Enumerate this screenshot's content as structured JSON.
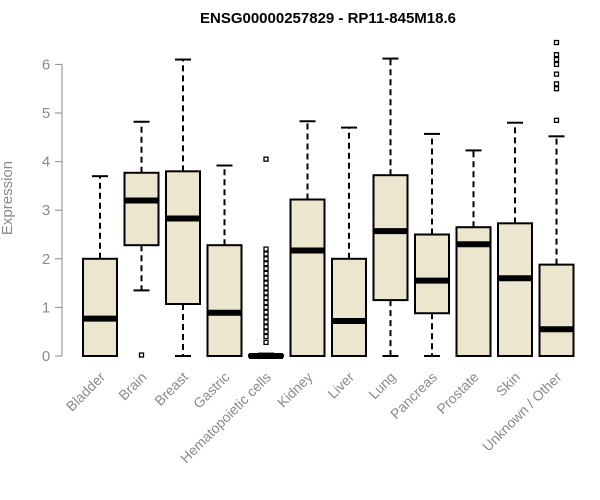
{
  "chart_data": {
    "type": "boxplot",
    "title": "ENSG00000257829 - RP11-845M18.6",
    "xlabel": "",
    "ylabel": "Expression",
    "ylim": [
      0,
      6.6
    ],
    "yticks": [
      0,
      1,
      2,
      3,
      4,
      5,
      6
    ],
    "grid": false,
    "box_fill": "#EDE6CF",
    "categories": [
      "Bladder",
      "Brain",
      "Breast",
      "Gastric",
      "Hematopoietic cells",
      "Kidney",
      "Liver",
      "Lung",
      "Pancreas",
      "Prostate",
      "Skin",
      "Unknown / Other"
    ],
    "boxes": [
      {
        "min": 0,
        "q1": 0,
        "median": 0.77,
        "q3": 2.0,
        "max": 3.7,
        "outliers": []
      },
      {
        "min": 1.35,
        "q1": 2.28,
        "median": 3.2,
        "q3": 3.77,
        "max": 4.82,
        "outliers": [
          0.02
        ]
      },
      {
        "min": 0,
        "q1": 1.07,
        "median": 2.83,
        "q3": 3.8,
        "max": 6.1,
        "outliers": []
      },
      {
        "min": 0,
        "q1": 0,
        "median": 0.89,
        "q3": 2.28,
        "max": 3.92,
        "outliers": []
      },
      {
        "min": 0,
        "q1": 0,
        "median": 0,
        "q3": 0.02,
        "max": 0.05,
        "outliers": [
          0.28,
          0.4,
          0.5,
          0.6,
          0.7,
          0.8,
          0.9,
          1.0,
          1.1,
          1.2,
          1.3,
          1.4,
          1.5,
          1.6,
          1.7,
          1.8,
          1.9,
          2.0,
          2.1,
          2.2,
          4.05
        ]
      },
      {
        "min": 0,
        "q1": 0,
        "median": 2.17,
        "q3": 3.22,
        "max": 4.83,
        "outliers": []
      },
      {
        "min": 0,
        "q1": 0,
        "median": 0.72,
        "q3": 2.0,
        "max": 4.7,
        "outliers": []
      },
      {
        "min": 0,
        "q1": 1.15,
        "median": 2.57,
        "q3": 3.72,
        "max": 6.12,
        "outliers": []
      },
      {
        "min": 0,
        "q1": 0.88,
        "median": 1.55,
        "q3": 2.5,
        "max": 4.57,
        "outliers": []
      },
      {
        "min": 0,
        "q1": 0,
        "median": 2.3,
        "q3": 2.65,
        "max": 4.23,
        "outliers": []
      },
      {
        "min": 0,
        "q1": 0,
        "median": 1.6,
        "q3": 2.73,
        "max": 4.8,
        "outliers": []
      },
      {
        "min": 0,
        "q1": 0,
        "median": 0.55,
        "q3": 1.88,
        "max": 4.52,
        "outliers": [
          4.85,
          5.5,
          5.6,
          5.8,
          6.0,
          6.1,
          6.2,
          6.45
        ]
      }
    ]
  }
}
